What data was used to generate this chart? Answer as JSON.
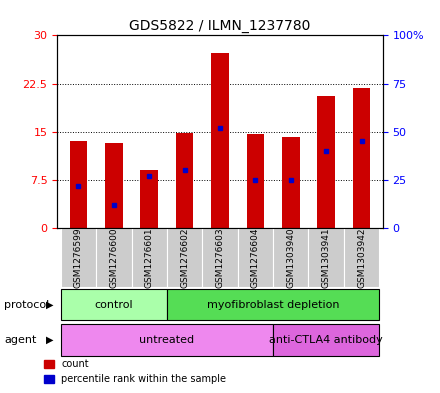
{
  "title": "GDS5822 / ILMN_1237780",
  "samples": [
    "GSM1276599",
    "GSM1276600",
    "GSM1276601",
    "GSM1276602",
    "GSM1276603",
    "GSM1276604",
    "GSM1303940",
    "GSM1303941",
    "GSM1303942"
  ],
  "counts": [
    13.5,
    13.2,
    9.0,
    14.8,
    27.2,
    14.7,
    14.2,
    20.5,
    21.8
  ],
  "percentiles": [
    22,
    12,
    27,
    30,
    52,
    25,
    25,
    40,
    45
  ],
  "bar_color": "#cc0000",
  "percentile_color": "#0000cc",
  "ylim_left": [
    0,
    30
  ],
  "ylim_right": [
    0,
    100
  ],
  "yticks_left": [
    0,
    7.5,
    15,
    22.5,
    30
  ],
  "yticks_right": [
    0,
    25,
    50,
    75,
    100
  ],
  "ytick_labels_left": [
    "0",
    "7.5",
    "15",
    "22.5",
    "30"
  ],
  "ytick_labels_right": [
    "0",
    "25",
    "50",
    "75",
    "100%"
  ],
  "protocol_groups": [
    {
      "label": "control",
      "start": 0,
      "end": 3,
      "color": "#aaffaa"
    },
    {
      "label": "myofibroblast depletion",
      "start": 3,
      "end": 9,
      "color": "#55dd55"
    }
  ],
  "agent_groups": [
    {
      "label": "untreated",
      "start": 0,
      "end": 6,
      "color": "#ee88ee"
    },
    {
      "label": "anti-CTLA4 antibody",
      "start": 6,
      "end": 9,
      "color": "#dd66dd"
    }
  ],
  "bar_width": 0.5,
  "grid_color": "black",
  "grid_style": "dotted",
  "background_color": "#ffffff",
  "sample_label_bg": "#cccccc"
}
